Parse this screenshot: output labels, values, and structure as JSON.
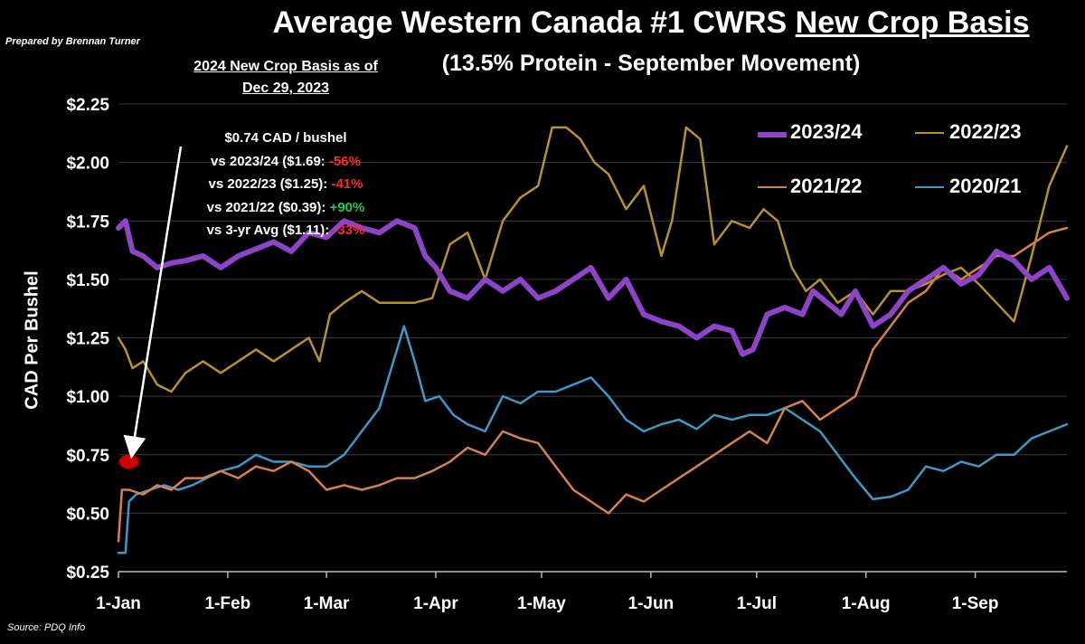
{
  "title_part1": "Average Western Canada #1 CWRS ",
  "title_part2": "New Crop Basis",
  "subtitle": "(13.5% Protein - September Movement)",
  "prepared_by": "Prepared by Brennan Turner",
  "source": "Source: PDQ Info",
  "annotation": {
    "header_line1": "2024 New Crop Basis as of",
    "header_line2": "Dec 29, 2023",
    "line1": "$0.74 CAD / bushel",
    "rows": [
      {
        "text": "vs 2023/24 ($1.69: ",
        "pct": "-56%",
        "tail": ""
      },
      {
        "text": "vs 2022/23 ($1.25): ",
        "pct": "-41%",
        "tail": ""
      },
      {
        "text": "vs 2021/22 ($0.39): ",
        "pct": "+90%",
        "tail": ""
      },
      {
        "text": "vs 3-yr Avg ($1.11): ",
        "pct": "-33%",
        "tail": ""
      }
    ],
    "colors": {
      "negative": "#ff2a2a",
      "positive": "#22c55e"
    }
  },
  "chart_data": {
    "type": "line",
    "ylabel": "CAD Per Bushel",
    "xlabel": "",
    "ylim": [
      0.25,
      2.25
    ],
    "yticks": [
      0.25,
      0.5,
      0.75,
      1.0,
      1.25,
      1.5,
      1.75,
      2.0,
      2.25
    ],
    "ytick_labels": [
      "$0.25",
      "$0.50",
      "$0.75",
      "$1.00",
      "$1.25",
      "$1.50",
      "$1.75",
      "$2.00",
      "$2.25"
    ],
    "xlim_days": [
      1,
      270
    ],
    "xticks": [
      1,
      32,
      60,
      91,
      121,
      152,
      182,
      213,
      244
    ],
    "xtick_labels": [
      "1-Jan",
      "1-Feb",
      "1-Mar",
      "1-Apr",
      "1-May",
      "1-Jun",
      "1-Jul",
      "1-Aug",
      "1-Sep"
    ],
    "grid": true,
    "legend_position": "top-right",
    "marker_point": {
      "x": 4,
      "y": 0.72,
      "color": "#cc0000"
    },
    "series": [
      {
        "name": "2023/24",
        "color": "#8e44c8",
        "x": [
          1,
          3,
          5,
          8,
          12,
          16,
          20,
          25,
          30,
          35,
          40,
          45,
          50,
          55,
          60,
          65,
          70,
          75,
          80,
          85,
          88,
          91,
          95,
          100,
          105,
          110,
          115,
          120,
          125,
          130,
          135,
          140,
          145,
          150,
          155,
          160,
          165,
          170,
          175,
          178,
          181,
          185,
          190,
          195,
          198,
          202,
          206,
          210,
          215,
          220,
          225,
          230,
          235,
          240,
          245,
          250,
          255,
          260,
          265,
          270
        ],
        "y": [
          1.72,
          1.75,
          1.62,
          1.6,
          1.55,
          1.57,
          1.58,
          1.6,
          1.55,
          1.6,
          1.63,
          1.66,
          1.62,
          1.7,
          1.68,
          1.75,
          1.72,
          1.7,
          1.75,
          1.72,
          1.6,
          1.55,
          1.45,
          1.42,
          1.5,
          1.45,
          1.5,
          1.42,
          1.45,
          1.5,
          1.55,
          1.42,
          1.5,
          1.35,
          1.32,
          1.3,
          1.25,
          1.3,
          1.28,
          1.18,
          1.2,
          1.35,
          1.38,
          1.35,
          1.45,
          1.4,
          1.35,
          1.45,
          1.3,
          1.35,
          1.45,
          1.5,
          1.55,
          1.48,
          1.52,
          1.62,
          1.58,
          1.5,
          1.55,
          1.42
        ]
      },
      {
        "name": "2022/23",
        "color": "#b8912a",
        "x": [
          1,
          3,
          5,
          8,
          12,
          16,
          20,
          25,
          30,
          35,
          40,
          45,
          50,
          55,
          58,
          61,
          65,
          70,
          75,
          80,
          85,
          90,
          95,
          100,
          105,
          110,
          115,
          120,
          124,
          128,
          132,
          136,
          140,
          145,
          150,
          155,
          158,
          162,
          166,
          170,
          175,
          180,
          184,
          188,
          192,
          196,
          200,
          205,
          210,
          215,
          220,
          225,
          230,
          235,
          240,
          245,
          250,
          255,
          260,
          265,
          270
        ],
        "y": [
          1.25,
          1.2,
          1.12,
          1.15,
          1.05,
          1.02,
          1.1,
          1.15,
          1.1,
          1.15,
          1.2,
          1.15,
          1.2,
          1.25,
          1.15,
          1.35,
          1.4,
          1.45,
          1.4,
          1.4,
          1.4,
          1.42,
          1.65,
          1.7,
          1.5,
          1.75,
          1.85,
          1.9,
          2.15,
          2.15,
          2.1,
          2.0,
          1.95,
          1.8,
          1.9,
          1.6,
          1.75,
          2.15,
          2.1,
          1.65,
          1.75,
          1.72,
          1.8,
          1.75,
          1.55,
          1.45,
          1.5,
          1.4,
          1.45,
          1.35,
          1.45,
          1.45,
          1.48,
          1.52,
          1.55,
          1.48,
          1.4,
          1.32,
          1.6,
          1.9,
          2.07
        ]
      },
      {
        "name": "2021/22",
        "color": "#d9814a",
        "x": [
          1,
          2,
          4,
          8,
          12,
          16,
          20,
          25,
          30,
          35,
          40,
          45,
          50,
          55,
          60,
          65,
          70,
          75,
          80,
          85,
          90,
          95,
          100,
          105,
          110,
          115,
          120,
          125,
          130,
          135,
          140,
          145,
          150,
          155,
          160,
          165,
          170,
          175,
          180,
          185,
          190,
          195,
          200,
          205,
          210,
          215,
          220,
          225,
          230,
          235,
          240,
          245,
          250,
          255,
          260,
          265,
          270
        ],
        "y": [
          0.38,
          0.6,
          0.6,
          0.58,
          0.62,
          0.6,
          0.65,
          0.65,
          0.68,
          0.65,
          0.7,
          0.68,
          0.72,
          0.68,
          0.6,
          0.62,
          0.6,
          0.62,
          0.65,
          0.65,
          0.68,
          0.72,
          0.78,
          0.75,
          0.85,
          0.82,
          0.8,
          0.7,
          0.6,
          0.55,
          0.5,
          0.58,
          0.55,
          0.6,
          0.65,
          0.7,
          0.75,
          0.8,
          0.85,
          0.8,
          0.95,
          0.98,
          0.9,
          0.95,
          1.0,
          1.2,
          1.3,
          1.4,
          1.45,
          1.55,
          1.5,
          1.55,
          1.6,
          1.6,
          1.65,
          1.7,
          1.72
        ]
      },
      {
        "name": "2020/21",
        "color": "#3b9ac9",
        "x": [
          1,
          3,
          4,
          6,
          10,
          14,
          18,
          22,
          26,
          30,
          35,
          40,
          45,
          50,
          55,
          60,
          65,
          70,
          75,
          78,
          82,
          85,
          88,
          92,
          96,
          100,
          105,
          110,
          115,
          120,
          125,
          130,
          135,
          140,
          145,
          150,
          155,
          160,
          165,
          170,
          175,
          180,
          185,
          190,
          195,
          200,
          205,
          210,
          215,
          220,
          225,
          230,
          235,
          240,
          245,
          250,
          255,
          260,
          265,
          270
        ],
        "y": [
          0.33,
          0.33,
          0.55,
          0.58,
          0.6,
          0.62,
          0.6,
          0.62,
          0.65,
          0.68,
          0.7,
          0.75,
          0.72,
          0.72,
          0.7,
          0.7,
          0.75,
          0.85,
          0.95,
          1.1,
          1.3,
          1.15,
          0.98,
          1.0,
          0.92,
          0.88,
          0.85,
          1.0,
          0.97,
          1.02,
          1.02,
          1.05,
          1.08,
          1.0,
          0.9,
          0.85,
          0.88,
          0.9,
          0.86,
          0.92,
          0.9,
          0.92,
          0.92,
          0.95,
          0.9,
          0.85,
          0.75,
          0.65,
          0.56,
          0.57,
          0.6,
          0.7,
          0.68,
          0.72,
          0.7,
          0.75,
          0.75,
          0.82,
          0.85,
          0.88
        ]
      }
    ]
  }
}
